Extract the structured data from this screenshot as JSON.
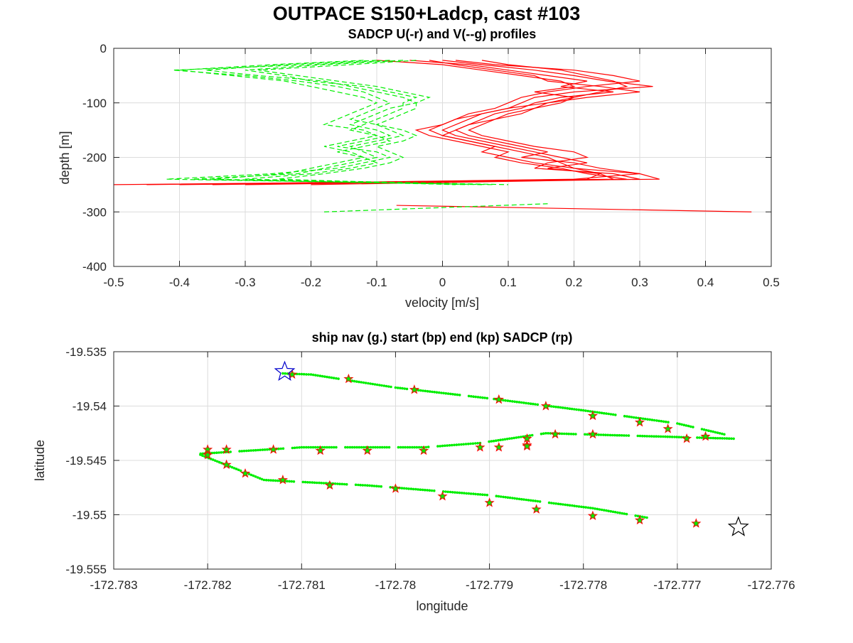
{
  "figure": {
    "suptitle": "OUTPACE S150+Ladcp, cast #103"
  },
  "chart_data": [
    {
      "type": "line",
      "title": "SADCP U(-r) and V(--g) profiles",
      "xlabel": "velocity [m/s]",
      "ylabel": "depth [m]",
      "xlim": [
        -0.5,
        0.5
      ],
      "ylim": [
        -400,
        0
      ],
      "xticks": [
        -0.5,
        -0.4,
        -0.3,
        -0.2,
        -0.1,
        0,
        0.1,
        0.2,
        0.3,
        0.4,
        0.5
      ],
      "xtick_labels": [
        "-0.5",
        "-0.4",
        "-0.3",
        "-0.2",
        "-0.1",
        "0",
        "0.1",
        "0.2",
        "0.3",
        "0.4",
        "0.5"
      ],
      "yticks": [
        -400,
        -300,
        -200,
        -100,
        0
      ],
      "ytick_labels": [
        "-400",
        "-300",
        "-200",
        "-100",
        "0"
      ],
      "grid": true,
      "series": [
        {
          "color": "#ff0000",
          "style": "solid",
          "depth": [
            -22,
            -30,
            -40,
            -50,
            -60,
            -70,
            -80,
            -90,
            -100,
            -110,
            -120,
            -130,
            -140,
            -150,
            -160,
            -170,
            -180,
            -190,
            -200,
            -210,
            -220,
            -230,
            -240,
            -250
          ],
          "profiles": [
            [
              0.02,
              0.08,
              0.2,
              0.26,
              0.3,
              0.22,
              0.16,
              0.12,
              0.1,
              0.08,
              0.04,
              0.02,
              0.0,
              -0.02,
              0.0,
              0.04,
              0.08,
              0.12,
              0.16,
              0.18,
              0.2,
              0.3,
              0.33,
              -0.5
            ],
            [
              0.0,
              0.06,
              0.14,
              0.2,
              0.25,
              0.32,
              0.2,
              0.14,
              0.12,
              0.1,
              0.06,
              0.04,
              0.02,
              0.0,
              0.02,
              0.06,
              0.1,
              0.14,
              0.18,
              0.22,
              0.16,
              0.24,
              0.26,
              -0.45
            ],
            [
              -0.05,
              0.04,
              0.1,
              0.16,
              0.22,
              0.18,
              0.26,
              0.18,
              0.14,
              0.12,
              0.08,
              0.06,
              0.04,
              0.02,
              0.04,
              0.08,
              0.12,
              0.16,
              0.12,
              0.2,
              0.24,
              0.3,
              0.2,
              -0.4
            ],
            [
              -0.1,
              0.0,
              0.06,
              0.12,
              0.18,
              0.2,
              0.14,
              0.2,
              0.16,
              0.1,
              0.06,
              0.02,
              0.0,
              -0.04,
              -0.02,
              0.02,
              0.06,
              0.1,
              0.08,
              0.12,
              0.18,
              0.22,
              0.28,
              -0.3
            ],
            [
              0.06,
              0.1,
              0.18,
              0.22,
              0.26,
              0.28,
              0.24,
              0.2,
              0.18,
              0.14,
              0.1,
              0.08,
              0.06,
              0.04,
              0.06,
              0.1,
              0.14,
              0.2,
              0.22,
              0.16,
              0.14,
              0.26,
              0.3,
              -0.2
            ],
            [
              -0.02,
              0.02,
              0.08,
              0.14,
              0.16,
              0.24,
              0.3,
              0.22,
              0.16,
              0.14,
              0.12,
              0.08,
              0.04,
              0.02,
              0.0,
              0.04,
              0.08,
              0.06,
              0.1,
              0.14,
              0.2,
              0.24,
              0.22,
              -0.35
            ]
          ],
          "deep_segment": {
            "velocity": [
              -0.07,
              0.47
            ],
            "depth": [
              -288,
              -300
            ]
          }
        },
        {
          "color": "#00ee00",
          "style": "dashed",
          "depth": [
            -22,
            -30,
            -40,
            -50,
            -60,
            -70,
            -80,
            -90,
            -100,
            -110,
            -120,
            -130,
            -140,
            -150,
            -160,
            -170,
            -180,
            -190,
            -200,
            -210,
            -220,
            -230,
            -240,
            -250
          ],
          "profiles": [
            [
              -0.08,
              -0.2,
              -0.41,
              -0.3,
              -0.22,
              -0.16,
              -0.12,
              -0.1,
              -0.08,
              -0.1,
              -0.12,
              -0.14,
              -0.1,
              -0.08,
              -0.06,
              -0.1,
              -0.14,
              -0.12,
              -0.1,
              -0.14,
              -0.18,
              -0.22,
              -0.38,
              0.04
            ],
            [
              -0.1,
              -0.24,
              -0.36,
              -0.28,
              -0.18,
              -0.14,
              -0.1,
              -0.06,
              -0.04,
              -0.08,
              -0.1,
              -0.12,
              -0.14,
              -0.1,
              -0.08,
              -0.12,
              -0.16,
              -0.1,
              -0.08,
              -0.12,
              -0.16,
              -0.26,
              -0.42,
              0.08
            ],
            [
              -0.06,
              -0.18,
              -0.3,
              -0.24,
              -0.2,
              -0.12,
              -0.08,
              -0.04,
              -0.06,
              -0.06,
              -0.08,
              -0.1,
              -0.12,
              -0.14,
              -0.1,
              -0.08,
              -0.12,
              -0.16,
              -0.12,
              -0.1,
              -0.14,
              -0.2,
              -0.3,
              0.1
            ],
            [
              -0.12,
              -0.26,
              -0.4,
              -0.32,
              -0.24,
              -0.2,
              -0.16,
              -0.12,
              -0.1,
              -0.12,
              -0.14,
              -0.16,
              -0.18,
              -0.12,
              -0.1,
              -0.14,
              -0.18,
              -0.14,
              -0.12,
              -0.16,
              -0.2,
              -0.24,
              -0.35,
              0.06
            ],
            [
              -0.04,
              -0.14,
              -0.28,
              -0.22,
              -0.16,
              -0.1,
              -0.06,
              -0.02,
              -0.04,
              -0.04,
              -0.06,
              -0.08,
              -0.1,
              -0.06,
              -0.04,
              -0.06,
              -0.1,
              -0.08,
              -0.06,
              -0.08,
              -0.12,
              -0.18,
              -0.25,
              0.02
            ]
          ],
          "deep_segment": {
            "velocity": [
              -0.18,
              0.16
            ],
            "depth": [
              -300,
              -285
            ]
          }
        }
      ]
    },
    {
      "type": "scatter",
      "title": "ship nav (g.) start (bp) end (kp) SADCP (rp)",
      "xlabel": "longitude",
      "ylabel": "latitude",
      "xlim": [
        -172.783,
        -172.776
      ],
      "ylim": [
        -19.555,
        -19.535
      ],
      "xticks": [
        -172.783,
        -172.782,
        -172.781,
        -172.78,
        -172.779,
        -172.778,
        -172.777,
        -172.776
      ],
      "xtick_labels": [
        "-172.783",
        "-172.782",
        "-172.781",
        "-172.78",
        "-172.779",
        "-172.778",
        "-172.777",
        "-172.776"
      ],
      "yticks": [
        -19.555,
        -19.55,
        -19.545,
        -19.54,
        -19.535
      ],
      "ytick_labels": [
        "-19.555",
        "-19.55",
        "-19.545",
        "-19.54",
        "-19.535"
      ],
      "grid": true,
      "ship_nav": {
        "color": "#00ee00",
        "marker": "dot",
        "lon": [
          -172.7812,
          -172.7809,
          -172.78,
          -172.779,
          -172.778,
          -172.777,
          -172.7765,
          -172.7764,
          -172.7772,
          -172.7784,
          -172.7791,
          -172.7797,
          -172.781,
          -172.7821,
          -172.7814,
          -172.7803,
          -172.779,
          -172.7779,
          -172.7773
        ],
        "lat": [
          -19.537,
          -19.5371,
          -19.5383,
          -19.5393,
          -19.5404,
          -19.5416,
          -19.5426,
          -19.543,
          -19.5428,
          -19.5425,
          -19.5434,
          -19.5438,
          -19.5438,
          -19.5444,
          -19.5468,
          -19.5473,
          -19.5482,
          -19.5494,
          -19.5503
        ]
      },
      "sadcp_points": {
        "color": "#ff0000",
        "marker": "star",
        "lon": [
          -172.7811,
          -172.7805,
          -172.7798,
          -172.7789,
          -172.7784,
          -172.7779,
          -172.7774,
          -172.7771,
          -172.7767,
          -172.7769,
          -172.7779,
          -172.7783,
          -172.7786,
          -172.7786,
          -172.7786,
          -172.7789,
          -172.7791,
          -172.7797,
          -172.7803,
          -172.7808,
          -172.7813,
          -172.7818,
          -172.782,
          -172.782,
          -172.7818,
          -172.7816,
          -172.7812,
          -172.7807,
          -172.78,
          -172.7795,
          -172.779,
          -172.7785,
          -172.7779,
          -172.7774,
          -172.7768
        ],
        "lat": [
          -19.5371,
          -19.5375,
          -19.5385,
          -19.5394,
          -19.54,
          -19.5409,
          -19.5415,
          -19.5421,
          -19.5428,
          -19.543,
          -19.5426,
          -19.5426,
          -19.543,
          -19.5436,
          -19.5437,
          -19.5438,
          -19.5438,
          -19.5441,
          -19.5441,
          -19.5441,
          -19.544,
          -19.544,
          -19.544,
          -19.5445,
          -19.5454,
          -19.5462,
          -19.5468,
          -19.5473,
          -19.5476,
          -19.5483,
          -19.5489,
          -19.5495,
          -19.5501,
          -19.5505,
          -19.5508
        ]
      },
      "start_point": {
        "color": "#0000cc",
        "marker": "pentagram",
        "lon": -172.78118,
        "lat": -19.53685
      },
      "end_point": {
        "color": "#000000",
        "marker": "pentagram",
        "lon": -172.77635,
        "lat": -19.55115
      }
    }
  ]
}
